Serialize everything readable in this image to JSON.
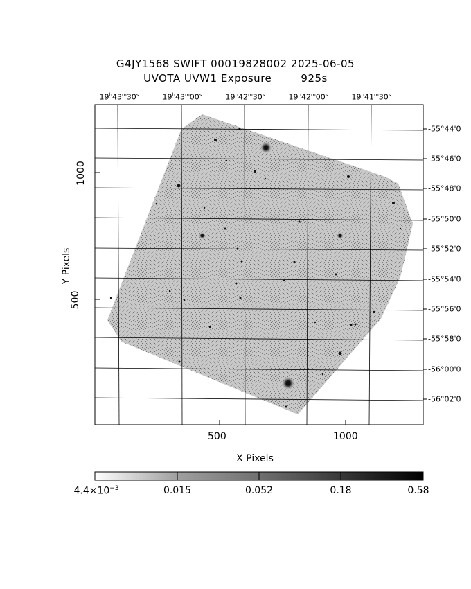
{
  "title": {
    "line1": "G4JY1568 SWIFT 00019828002 2025-06-05",
    "line2": "UVOTA UVW1 Exposure        925s"
  },
  "ra_labels": [
    {
      "h": "19",
      "m": "43",
      "s": "30"
    },
    {
      "h": "19",
      "m": "43",
      "s": "00"
    },
    {
      "h": "19",
      "m": "42",
      "s": "30"
    },
    {
      "h": "19",
      "m": "42",
      "s": "00"
    },
    {
      "h": "19",
      "m": "41",
      "s": "30"
    }
  ],
  "dec_labels": [
    "-55°44'0",
    "-55°46'0",
    "-55°48'0",
    "-55°50'0",
    "-55°52'0",
    "-55°54'0",
    "-55°56'0",
    "-55°58'0",
    "-56°00'0",
    "-56°02'0"
  ],
  "x_axis": {
    "label": "X Pixels",
    "ticks": [
      "500",
      "1000"
    ]
  },
  "y_axis": {
    "label": "Y Pixels",
    "ticks": [
      "500",
      "1000"
    ]
  },
  "colorbar": {
    "labels": [
      {
        "base": "4.4×10",
        "exp": "−3"
      },
      {
        "base": "0.015",
        "exp": ""
      },
      {
        "base": "0.052",
        "exp": ""
      },
      {
        "base": "0.18",
        "exp": ""
      },
      {
        "base": "0.58",
        "exp": ""
      }
    ]
  },
  "colors": {
    "frame": "#000000",
    "image_bg": "#bfbfbf",
    "grid": "#000000"
  }
}
